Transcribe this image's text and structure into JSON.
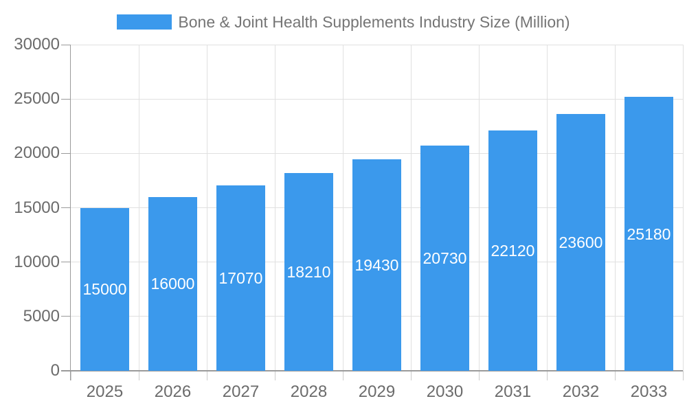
{
  "legend": {
    "label": "Bone & Joint Health Supplements Industry Size (Million)"
  },
  "chart_data": {
    "type": "bar",
    "title": "Bone & Joint Health Supplements Industry Size (Million)",
    "categories": [
      "2025",
      "2026",
      "2027",
      "2028",
      "2029",
      "2030",
      "2031",
      "2032",
      "2033"
    ],
    "values": [
      15000,
      16000,
      17070,
      18210,
      19430,
      20730,
      22120,
      23600,
      25180
    ],
    "bar_value_labels": [
      "15000",
      "16000",
      "17070",
      "18210",
      "19430",
      "20730",
      "22120",
      "23600",
      "25180"
    ],
    "xlabel": "",
    "ylabel": "",
    "ylim": [
      0,
      30000
    ],
    "yticks": [
      0,
      5000,
      10000,
      15000,
      20000,
      25000,
      30000
    ],
    "ytick_labels": [
      "0",
      "5000",
      "10000",
      "15000",
      "20000",
      "25000",
      "30000"
    ],
    "grid": true,
    "legend_position": "top",
    "value_labels_position": "inside-center"
  },
  "colors": {
    "bar": "#3b99ec",
    "bar_label": "#ffffff",
    "grid": "#e0e0e0",
    "axis": "#9a9a9a",
    "tick": "#cccccc",
    "axis_text": "#6b6b6b",
    "legend_text": "#757575",
    "background": "#ffffff"
  }
}
